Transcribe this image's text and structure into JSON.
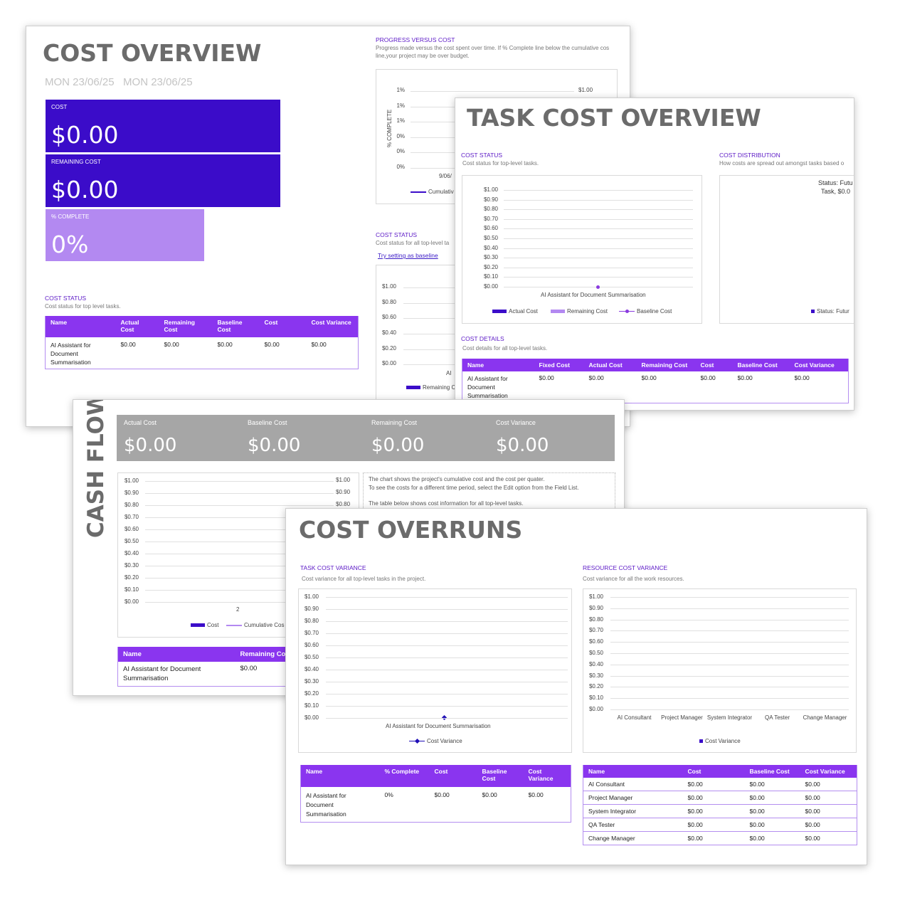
{
  "colors": {
    "primary": "#3b0cc9",
    "secondary": "#8a35ef",
    "light": "#b389f1",
    "grey": "#a6a6a6",
    "title": "#6b6b6b"
  },
  "cost_overview": {
    "title": "COST OVERVIEW",
    "dates": "MON 23/06/25   MON 23/06/25",
    "kpis": [
      {
        "label": "COST",
        "value": "$0.00"
      },
      {
        "label": "REMAINING COST",
        "value": "$0.00"
      },
      {
        "label": "% COMPLETE",
        "value": "0%"
      }
    ],
    "progress": {
      "title": "PROGRESS VERSUS COST",
      "subtitle_line1": "Progress made versus the cost spent over time. If % Complete line below the cumulative cos",
      "subtitle_line2": "line,your project may be over budget.",
      "ylabel": "% COMPLETE",
      "yticks": [
        "1%",
        "1%",
        "1%",
        "0%",
        "0%",
        "0%"
      ],
      "right_tick": "$1.00",
      "x_tick": "9/06/",
      "legend": "Cumulativ"
    },
    "cost_status_right": {
      "title": "COST STATUS",
      "subtitle": "Cost status for all top-level ta",
      "link": "Try setting as baseline",
      "yticks": [
        "$1.00",
        "$0.80",
        "$0.60",
        "$0.40",
        "$0.20",
        "$0.00"
      ],
      "x_tick": "AI",
      "legend": "Remaining C"
    },
    "cost_status": {
      "title": "COST STATUS",
      "subtitle": "Cost status for top level tasks.",
      "headers": [
        "Name",
        "Actual Cost",
        "Remaining Cost",
        "Baseline Cost",
        "Cost",
        "Cost Variance"
      ],
      "rows": [
        [
          "AI Assistant for Document Summarisation",
          "$0.00",
          "$0.00",
          "$0.00",
          "$0.00",
          "$0.00"
        ]
      ]
    }
  },
  "task_cost_overview": {
    "title": "TASK COST OVERVIEW",
    "cost_status": {
      "title": "COST STATUS",
      "subtitle": "Cost status for top-level tasks.",
      "yticks": [
        "$1.00",
        "$0.90",
        "$0.80",
        "$0.70",
        "$0.60",
        "$0.50",
        "$0.40",
        "$0.30",
        "$0.20",
        "$0.10",
        "$0.00"
      ],
      "x_label": "AI Assistant for Document Summarisation",
      "legend": [
        "Actual Cost",
        "Remaining Cost",
        "Baseline Cost"
      ]
    },
    "distribution": {
      "title": "COST DISTRIBUTION",
      "subtitle": "How costs are spread out amongst tasks based o",
      "label_line1": "Status: Futu",
      "label_line2": "Task, $0.0",
      "legend": "Status: Futur"
    },
    "cost_details": {
      "title": "COST DETAILS",
      "subtitle": "Cost details for all top-level tasks.",
      "headers": [
        "Name",
        "Fixed Cost",
        "Actual Cost",
        "Remaining Cost",
        "Cost",
        "Baseline Cost",
        "Cost Variance"
      ],
      "rows": [
        [
          "AI Assistant for Document Summarisation",
          "$0.00",
          "$0.00",
          "$0.00",
          "$0.00",
          "$0.00",
          "$0.00"
        ]
      ]
    }
  },
  "cash_flow": {
    "title": "CASH FLOW",
    "kpis": [
      {
        "label": "Actual Cost",
        "value": "$0.00"
      },
      {
        "label": "Baseline Cost",
        "value": "$0.00"
      },
      {
        "label": "Remaining Cost",
        "value": "$0.00"
      },
      {
        "label": "Cost Variance",
        "value": "$0.00"
      }
    ],
    "yticks": [
      "$1.00",
      "$0.90",
      "$0.80",
      "$0.70",
      "$0.60",
      "$0.50",
      "$0.40",
      "$0.30",
      "$0.20",
      "$0.10",
      "$0.00"
    ],
    "right_ticks": [
      "$1.00",
      "$0.90",
      "$0.80"
    ],
    "x_tick": "2",
    "legend": [
      "Cost",
      "Cumulative Cos"
    ],
    "note_line1": "The chart shows the project's cumulative cost and the cost per quater.",
    "note_line2": "To see the costs for a different time period, select the Edit option from the Field List.",
    "note_line3": "The table below shows cost information for all top-level tasks.",
    "table": {
      "headers": [
        "Name",
        "Remaining Co"
      ],
      "rows": [
        [
          "AI Assistant for Document Summarisation",
          "$0.00"
        ]
      ]
    }
  },
  "cost_overruns": {
    "title": "COST OVERRUNS",
    "task_variance": {
      "title": "TASK COST VARIANCE",
      "subtitle": "Cost variance for all top-level tasks in the project.",
      "yticks": [
        "$1.00",
        "$0.90",
        "$0.80",
        "$0.70",
        "$0.60",
        "$0.50",
        "$0.40",
        "$0.30",
        "$0.20",
        "$0.10",
        "$0.00"
      ],
      "x_label": "AI Assistant for Document Summarisation",
      "legend": "Cost Variance",
      "table": {
        "headers": [
          "Name",
          "% Complete",
          "Cost",
          "Baseline Cost",
          "Cost Variance"
        ],
        "rows": [
          [
            "AI Assistant for Document Summarisation",
            "0%",
            "$0.00",
            "$0.00",
            "$0.00"
          ]
        ]
      }
    },
    "resource_variance": {
      "title": "RESOURCE COST VARIANCE",
      "subtitle": "Cost variance for all the work resources.",
      "yticks": [
        "$1.00",
        "$0.90",
        "$0.80",
        "$0.70",
        "$0.60",
        "$0.50",
        "$0.40",
        "$0.30",
        "$0.20",
        "$0.10",
        "$0.00"
      ],
      "categories": [
        "AI Consultant",
        "Project Manager",
        "System Integrator",
        "QA Tester",
        "Change Manager"
      ],
      "legend": "Cost Variance",
      "table": {
        "headers": [
          "Name",
          "Cost",
          "Baseline Cost",
          "Cost Variance"
        ],
        "rows": [
          [
            "AI Consultant",
            "$0.00",
            "$0.00",
            "$0.00"
          ],
          [
            "Project Manager",
            "$0.00",
            "$0.00",
            "$0.00"
          ],
          [
            "System Integrator",
            "$0.00",
            "$0.00",
            "$0.00"
          ],
          [
            "QA Tester",
            "$0.00",
            "$0.00",
            "$0.00"
          ],
          [
            "Change Manager",
            "$0.00",
            "$0.00",
            "$0.00"
          ]
        ]
      }
    }
  }
}
